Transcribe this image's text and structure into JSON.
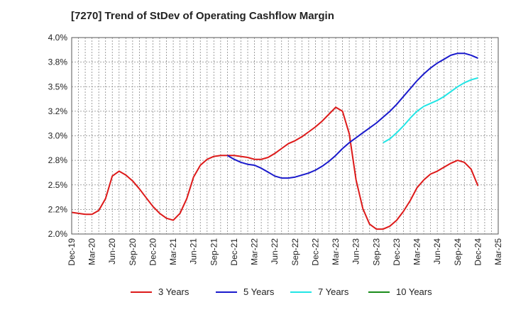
{
  "title": "[7270]  Trend of StDev of Operating Cashflow Margin",
  "chart_data": {
    "type": "line",
    "title": "[7270]  Trend of StDev of Operating Cashflow Margin",
    "xlabel": "",
    "ylabel": "",
    "x_ticks": [
      "Dec-19",
      "Mar-20",
      "Jun-20",
      "Sep-20",
      "Dec-20",
      "Mar-21",
      "Jun-21",
      "Sep-21",
      "Dec-21",
      "Mar-22",
      "Jun-22",
      "Sep-22",
      "Dec-22",
      "Mar-23",
      "Jun-23",
      "Sep-23",
      "Dec-23",
      "Mar-24",
      "Jun-24",
      "Sep-24",
      "Dec-24",
      "Mar-25"
    ],
    "y_ticks": [
      "2.0%",
      "2.2%",
      "2.5%",
      "2.8%",
      "3.0%",
      "3.2%",
      "3.5%",
      "3.8%",
      "4.0%"
    ],
    "ylim": [
      2.0,
      4.0
    ],
    "grid": true,
    "legend_position": "bottom",
    "series": [
      {
        "name": "3 Years",
        "color": "#dd1a1a",
        "points": [
          [
            "Dec-19",
            2.22
          ],
          [
            "Jan-20",
            2.21
          ],
          [
            "Feb-20",
            2.2
          ],
          [
            "Mar-20",
            2.2
          ],
          [
            "Apr-20",
            2.24
          ],
          [
            "May-20",
            2.36
          ],
          [
            "Jun-20",
            2.59
          ],
          [
            "Jul-20",
            2.64
          ],
          [
            "Aug-20",
            2.6
          ],
          [
            "Sep-20",
            2.54
          ],
          [
            "Oct-20",
            2.46
          ],
          [
            "Nov-20",
            2.37
          ],
          [
            "Dec-20",
            2.28
          ],
          [
            "Jan-21",
            2.21
          ],
          [
            "Feb-21",
            2.16
          ],
          [
            "Mar-21",
            2.14
          ],
          [
            "Apr-21",
            2.21
          ],
          [
            "May-21",
            2.36
          ],
          [
            "Jun-21",
            2.58
          ],
          [
            "Jul-21",
            2.7
          ],
          [
            "Aug-21",
            2.76
          ],
          [
            "Sep-21",
            2.79
          ],
          [
            "Oct-21",
            2.8
          ],
          [
            "Nov-21",
            2.8
          ],
          [
            "Dec-21",
            2.8
          ],
          [
            "Jan-22",
            2.79
          ],
          [
            "Feb-22",
            2.78
          ],
          [
            "Mar-22",
            2.76
          ],
          [
            "Apr-22",
            2.76
          ],
          [
            "May-22",
            2.78
          ],
          [
            "Jun-22",
            2.82
          ],
          [
            "Jul-22",
            2.87
          ],
          [
            "Aug-22",
            2.92
          ],
          [
            "Sep-22",
            2.95
          ],
          [
            "Oct-22",
            2.99
          ],
          [
            "Nov-22",
            3.04
          ],
          [
            "Dec-22",
            3.09
          ],
          [
            "Jan-23",
            3.15
          ],
          [
            "Feb-23",
            3.22
          ],
          [
            "Mar-23",
            3.29
          ],
          [
            "Apr-23",
            3.25
          ],
          [
            "May-23",
            3.02
          ],
          [
            "Jun-23",
            2.55
          ],
          [
            "Jul-23",
            2.26
          ],
          [
            "Aug-23",
            2.1
          ],
          [
            "Sep-23",
            2.05
          ],
          [
            "Oct-23",
            2.05
          ],
          [
            "Nov-23",
            2.08
          ],
          [
            "Dec-23",
            2.14
          ],
          [
            "Jan-24",
            2.23
          ],
          [
            "Feb-24",
            2.34
          ],
          [
            "Mar-24",
            2.47
          ],
          [
            "Apr-24",
            2.55
          ],
          [
            "May-24",
            2.61
          ],
          [
            "Jun-24",
            2.64
          ],
          [
            "Jul-24",
            2.68
          ],
          [
            "Aug-24",
            2.72
          ],
          [
            "Sep-24",
            2.75
          ],
          [
            "Oct-24",
            2.73
          ],
          [
            "Nov-24",
            2.66
          ],
          [
            "Dec-24",
            2.49
          ]
        ]
      },
      {
        "name": "5 Years",
        "color": "#1a1acc",
        "points": [
          [
            "Nov-21",
            2.8
          ],
          [
            "Dec-21",
            2.76
          ],
          [
            "Jan-22",
            2.73
          ],
          [
            "Feb-22",
            2.71
          ],
          [
            "Mar-22",
            2.7
          ],
          [
            "Apr-22",
            2.67
          ],
          [
            "May-22",
            2.63
          ],
          [
            "Jun-22",
            2.59
          ],
          [
            "Jul-22",
            2.57
          ],
          [
            "Aug-22",
            2.57
          ],
          [
            "Sep-22",
            2.58
          ],
          [
            "Oct-22",
            2.6
          ],
          [
            "Nov-22",
            2.62
          ],
          [
            "Dec-22",
            2.65
          ],
          [
            "Jan-23",
            2.69
          ],
          [
            "Feb-23",
            2.74
          ],
          [
            "Mar-23",
            2.8
          ],
          [
            "Apr-23",
            2.87
          ],
          [
            "May-23",
            2.93
          ],
          [
            "Jun-23",
            2.98
          ],
          [
            "Jul-23",
            3.03
          ],
          [
            "Aug-23",
            3.08
          ],
          [
            "Sep-23",
            3.13
          ],
          [
            "Oct-23",
            3.19
          ],
          [
            "Nov-23",
            3.25
          ],
          [
            "Dec-23",
            3.32
          ],
          [
            "Jan-24",
            3.4
          ],
          [
            "Feb-24",
            3.48
          ],
          [
            "Mar-24",
            3.56
          ],
          [
            "Apr-24",
            3.63
          ],
          [
            "May-24",
            3.69
          ],
          [
            "Jun-24",
            3.74
          ],
          [
            "Jul-24",
            3.78
          ],
          [
            "Aug-24",
            3.82
          ],
          [
            "Sep-24",
            3.84
          ],
          [
            "Oct-24",
            3.84
          ],
          [
            "Nov-24",
            3.82
          ],
          [
            "Dec-24",
            3.79
          ]
        ]
      },
      {
        "name": "7 Years",
        "color": "#22e5e5",
        "points": [
          [
            "Oct-23",
            2.93
          ],
          [
            "Nov-23",
            2.97
          ],
          [
            "Dec-23",
            3.03
          ],
          [
            "Jan-24",
            3.1
          ],
          [
            "Feb-24",
            3.18
          ],
          [
            "Mar-24",
            3.25
          ],
          [
            "Apr-24",
            3.3
          ],
          [
            "May-24",
            3.33
          ],
          [
            "Jun-24",
            3.36
          ],
          [
            "Jul-24",
            3.4
          ],
          [
            "Aug-24",
            3.45
          ],
          [
            "Sep-24",
            3.5
          ],
          [
            "Oct-24",
            3.54
          ],
          [
            "Nov-24",
            3.57
          ],
          [
            "Dec-24",
            3.59
          ]
        ]
      },
      {
        "name": "10 Years",
        "color": "#1a8c1a",
        "points": []
      }
    ]
  }
}
